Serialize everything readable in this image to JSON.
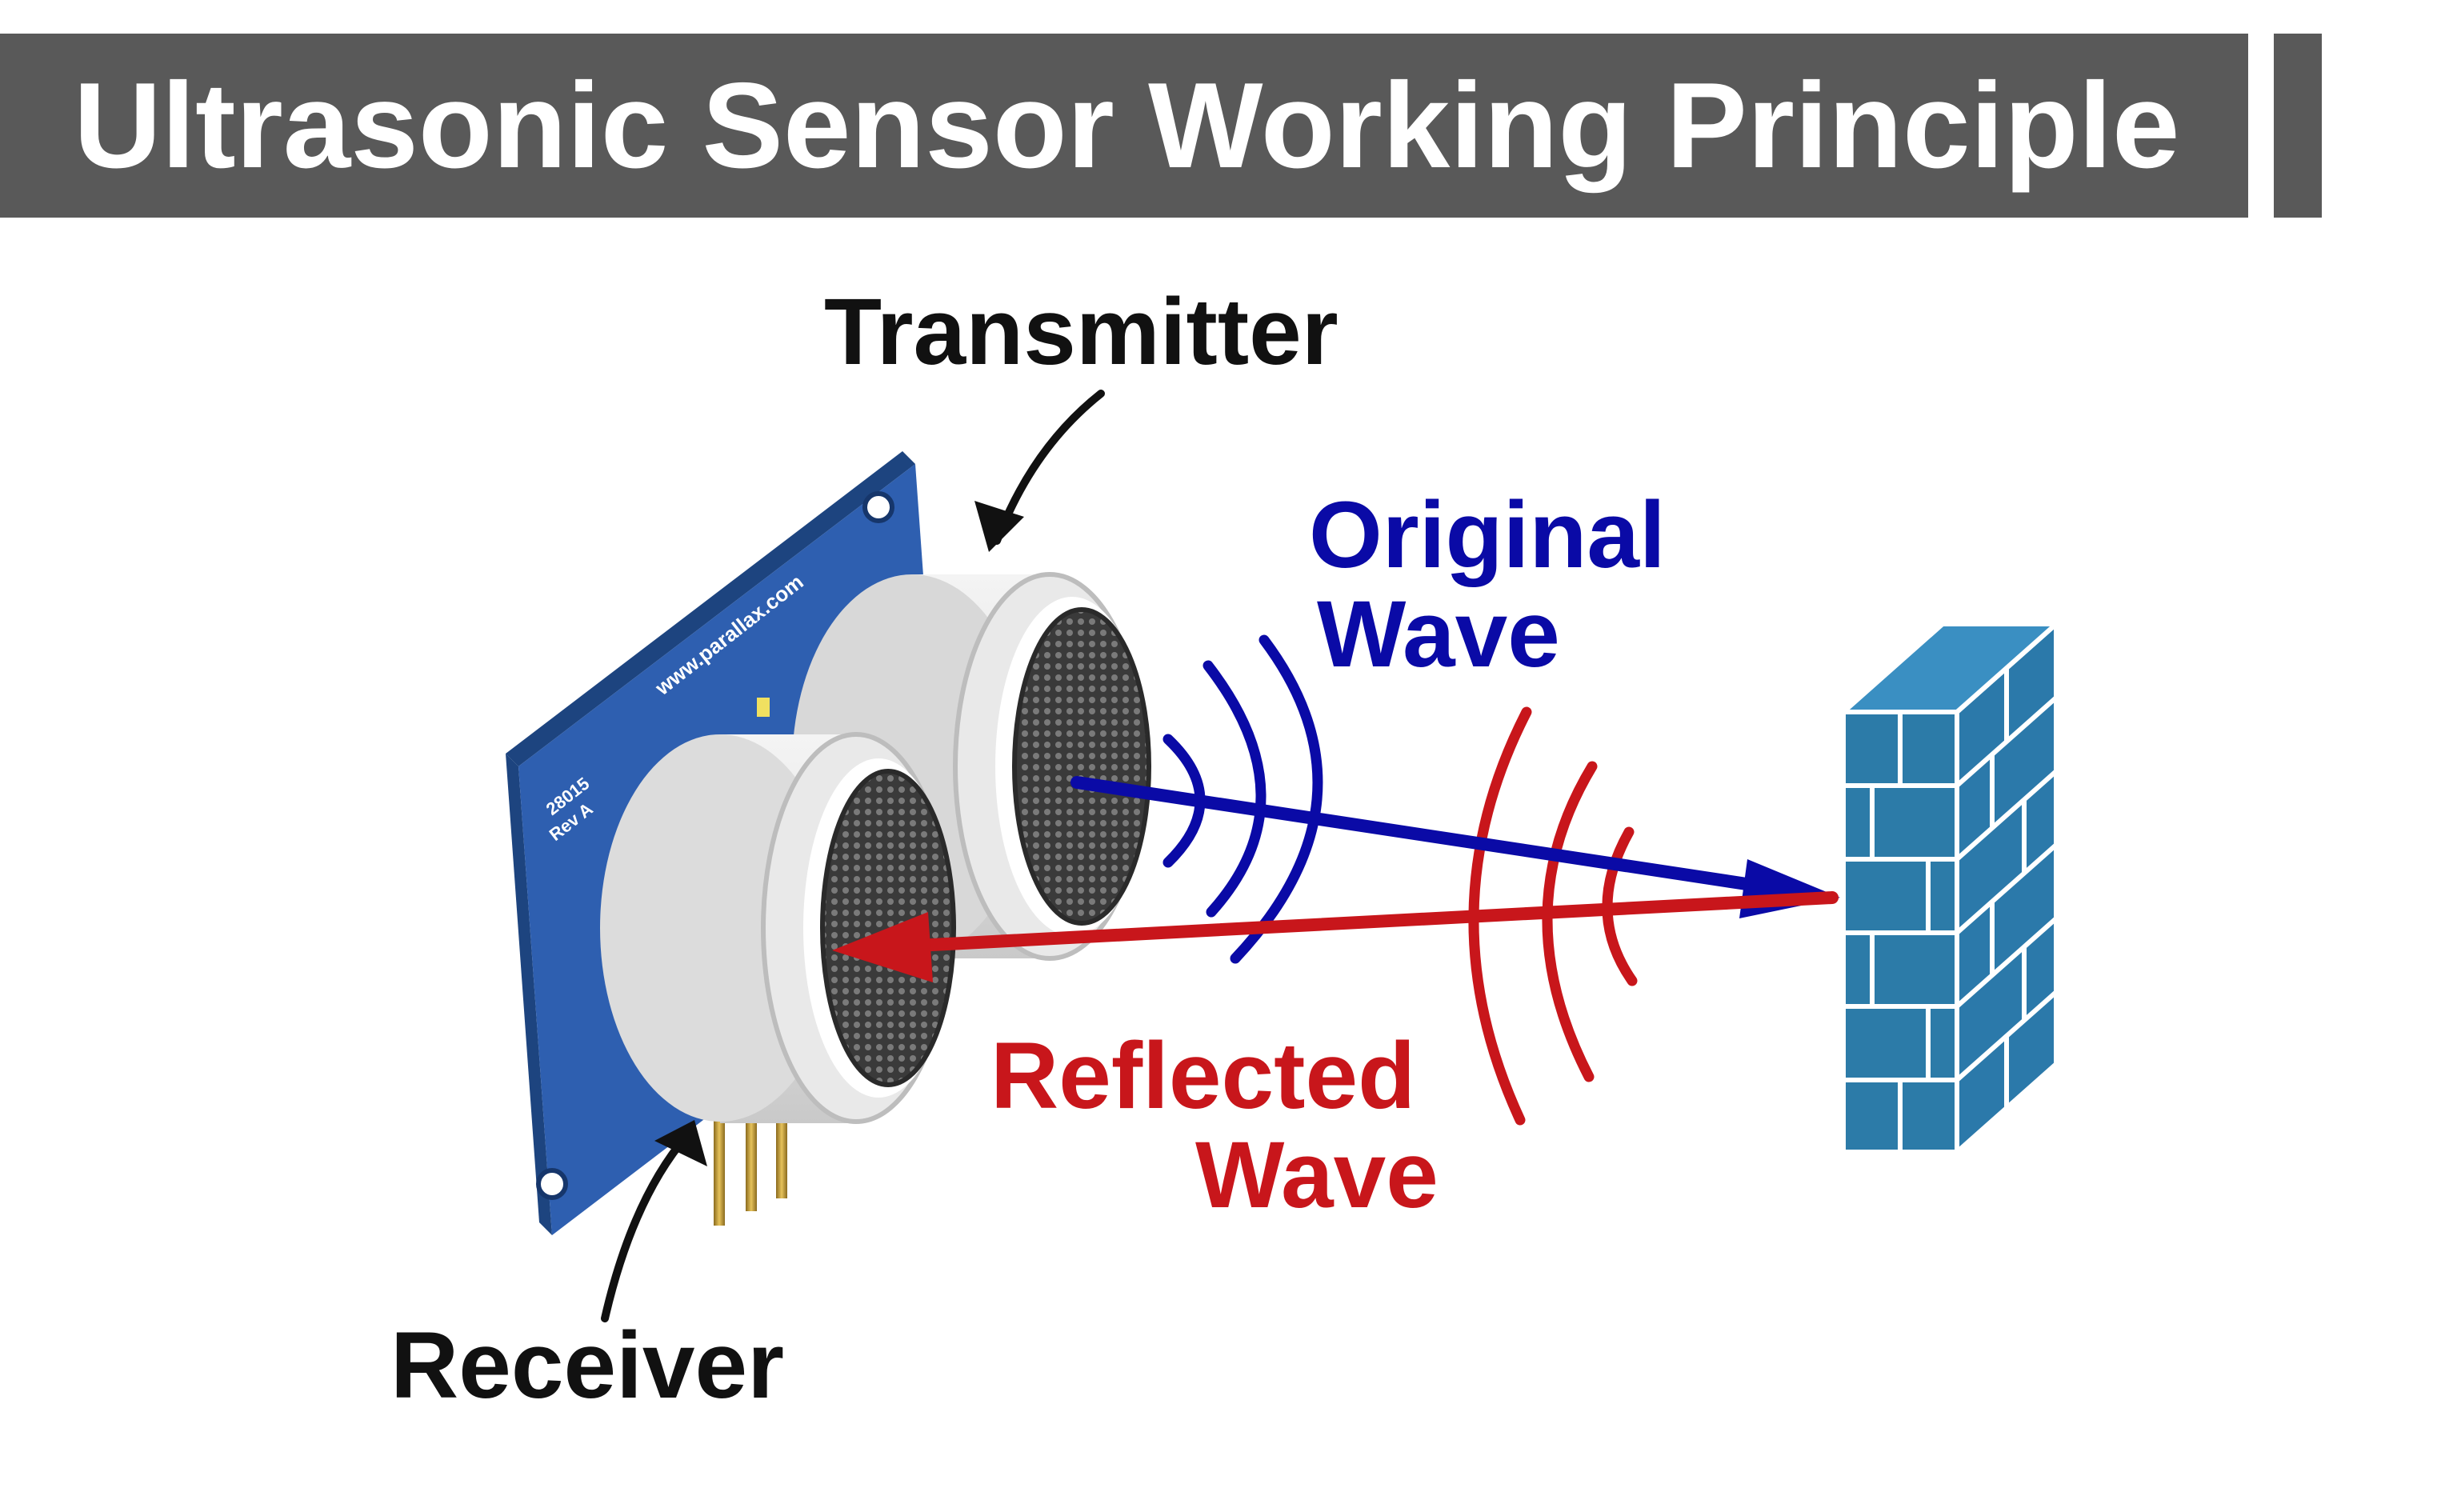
{
  "title": "Ultrasonic Sensor Working Principle",
  "labels": {
    "transmitter": "Transmitter",
    "receiver": "Receiver",
    "original_wave_line1": "Original",
    "original_wave_line2": "Wave",
    "reflected_wave_line1": "Reflected",
    "reflected_wave_line2": "Wave"
  },
  "board_text": {
    "url": "www.parallax.com",
    "model": "28015",
    "rev": "Rev A"
  },
  "icons": {
    "sensor": "ultrasonic-sensor-module",
    "wall": "brick-wall-icon"
  },
  "colors": {
    "title_bar": "#595959",
    "title_text": "#ffffff",
    "original_wave": "#0a0aa6",
    "reflected_wave": "#c8161b",
    "label_black": "#111111",
    "board": "#2e5fb0",
    "wall": "#2c7ba8"
  }
}
